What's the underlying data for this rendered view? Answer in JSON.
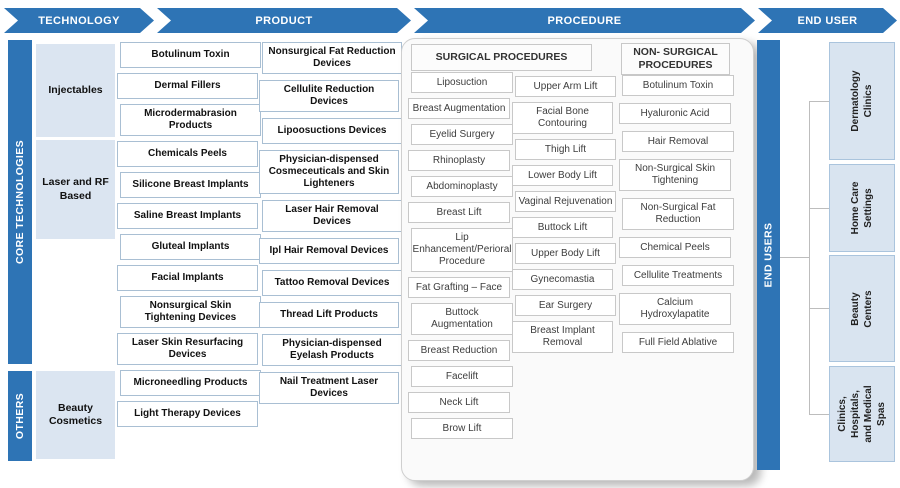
{
  "header": {
    "stages": [
      "TECHNOLOGY",
      "PRODUCT",
      "PROCEDURE",
      "END USER"
    ]
  },
  "rails": {
    "core": "CORE TECHNOLOGIES",
    "others": "OTHERS",
    "end_users": "END USERS"
  },
  "technology": {
    "injectables": "Injectables",
    "laser_rf": "Laser and RF Based",
    "beauty_cosmetics": "Beauty Cosmetics"
  },
  "products": {
    "column1": [
      "Botulinum Toxin",
      "Dermal Fillers",
      "Microdermabrasion Products",
      "Chemicals Peels",
      "Silicone Breast Implants",
      "Saline Breast Implants",
      "Gluteal Implants",
      "Facial Implants",
      "Nonsurgical Skin Tightening Devices",
      "Laser Skin Resurfacing Devices",
      "Microneedling Products",
      "Light Therapy Devices"
    ],
    "column2": [
      "Nonsurgical Fat Reduction Devices",
      "Cellulite Reduction Devices",
      "Lipoosuctions Devices",
      "Physician-dispensed Cosmeceuticals and Skin Lighteners",
      "Laser Hair Removal Devices",
      "Ipl Hair Removal Devices",
      "Tattoo Removal Devices",
      "Thread Lift Products",
      "Physician-dispensed Eyelash Products",
      "Nail Treatment Laser Devices"
    ]
  },
  "procedures": {
    "surgical_title": "SURGICAL PROCEDURES",
    "nonsurgical_title": "NON- SURGICAL PROCEDURES",
    "surgical_col1": [
      "Liposuction",
      "Breast Augmentation",
      "Eyelid Surgery",
      "Rhinoplasty",
      "Abdominoplasty",
      "Breast Lift",
      "Lip Enhancement/Perioral Procedure",
      "Fat Grafting – Face",
      "Buttock Augmentation",
      "Breast Reduction",
      "Facelift",
      "Neck Lift",
      "Brow Lift"
    ],
    "surgical_col2": [
      "Upper Arm Lift",
      "Facial Bone Contouring",
      "Thigh Lift",
      "Lower Body Lift",
      "Vaginal Rejuvenation",
      "Buttock Lift",
      "Upper Body Lift",
      "Gynecomastia",
      "Ear Surgery",
      "Breast Implant Removal"
    ],
    "nonsurgical": [
      "Botulinum Toxin",
      "Hyaluronic Acid",
      "Hair Removal",
      "Non-Surgical Skin Tightening",
      "Non-Surgical Fat Reduction",
      "Chemical Peels",
      "Cellulite Treatments",
      "Calcium Hydroxylapatite",
      "Full Field Ablative"
    ]
  },
  "end_users": {
    "items": [
      "Dermatology Clinics",
      "Home Care Settings",
      "Beauty Centers",
      "Clinics, Hospitals, and Medical Spas"
    ]
  },
  "colors": {
    "accent_blue": "#2e74b5",
    "light_blue_fill": "#dbe5f1",
    "end_user_fill": "#d9e4f0",
    "box_border": "#a9bfd3",
    "procedure_border": "#c8c8c8"
  }
}
